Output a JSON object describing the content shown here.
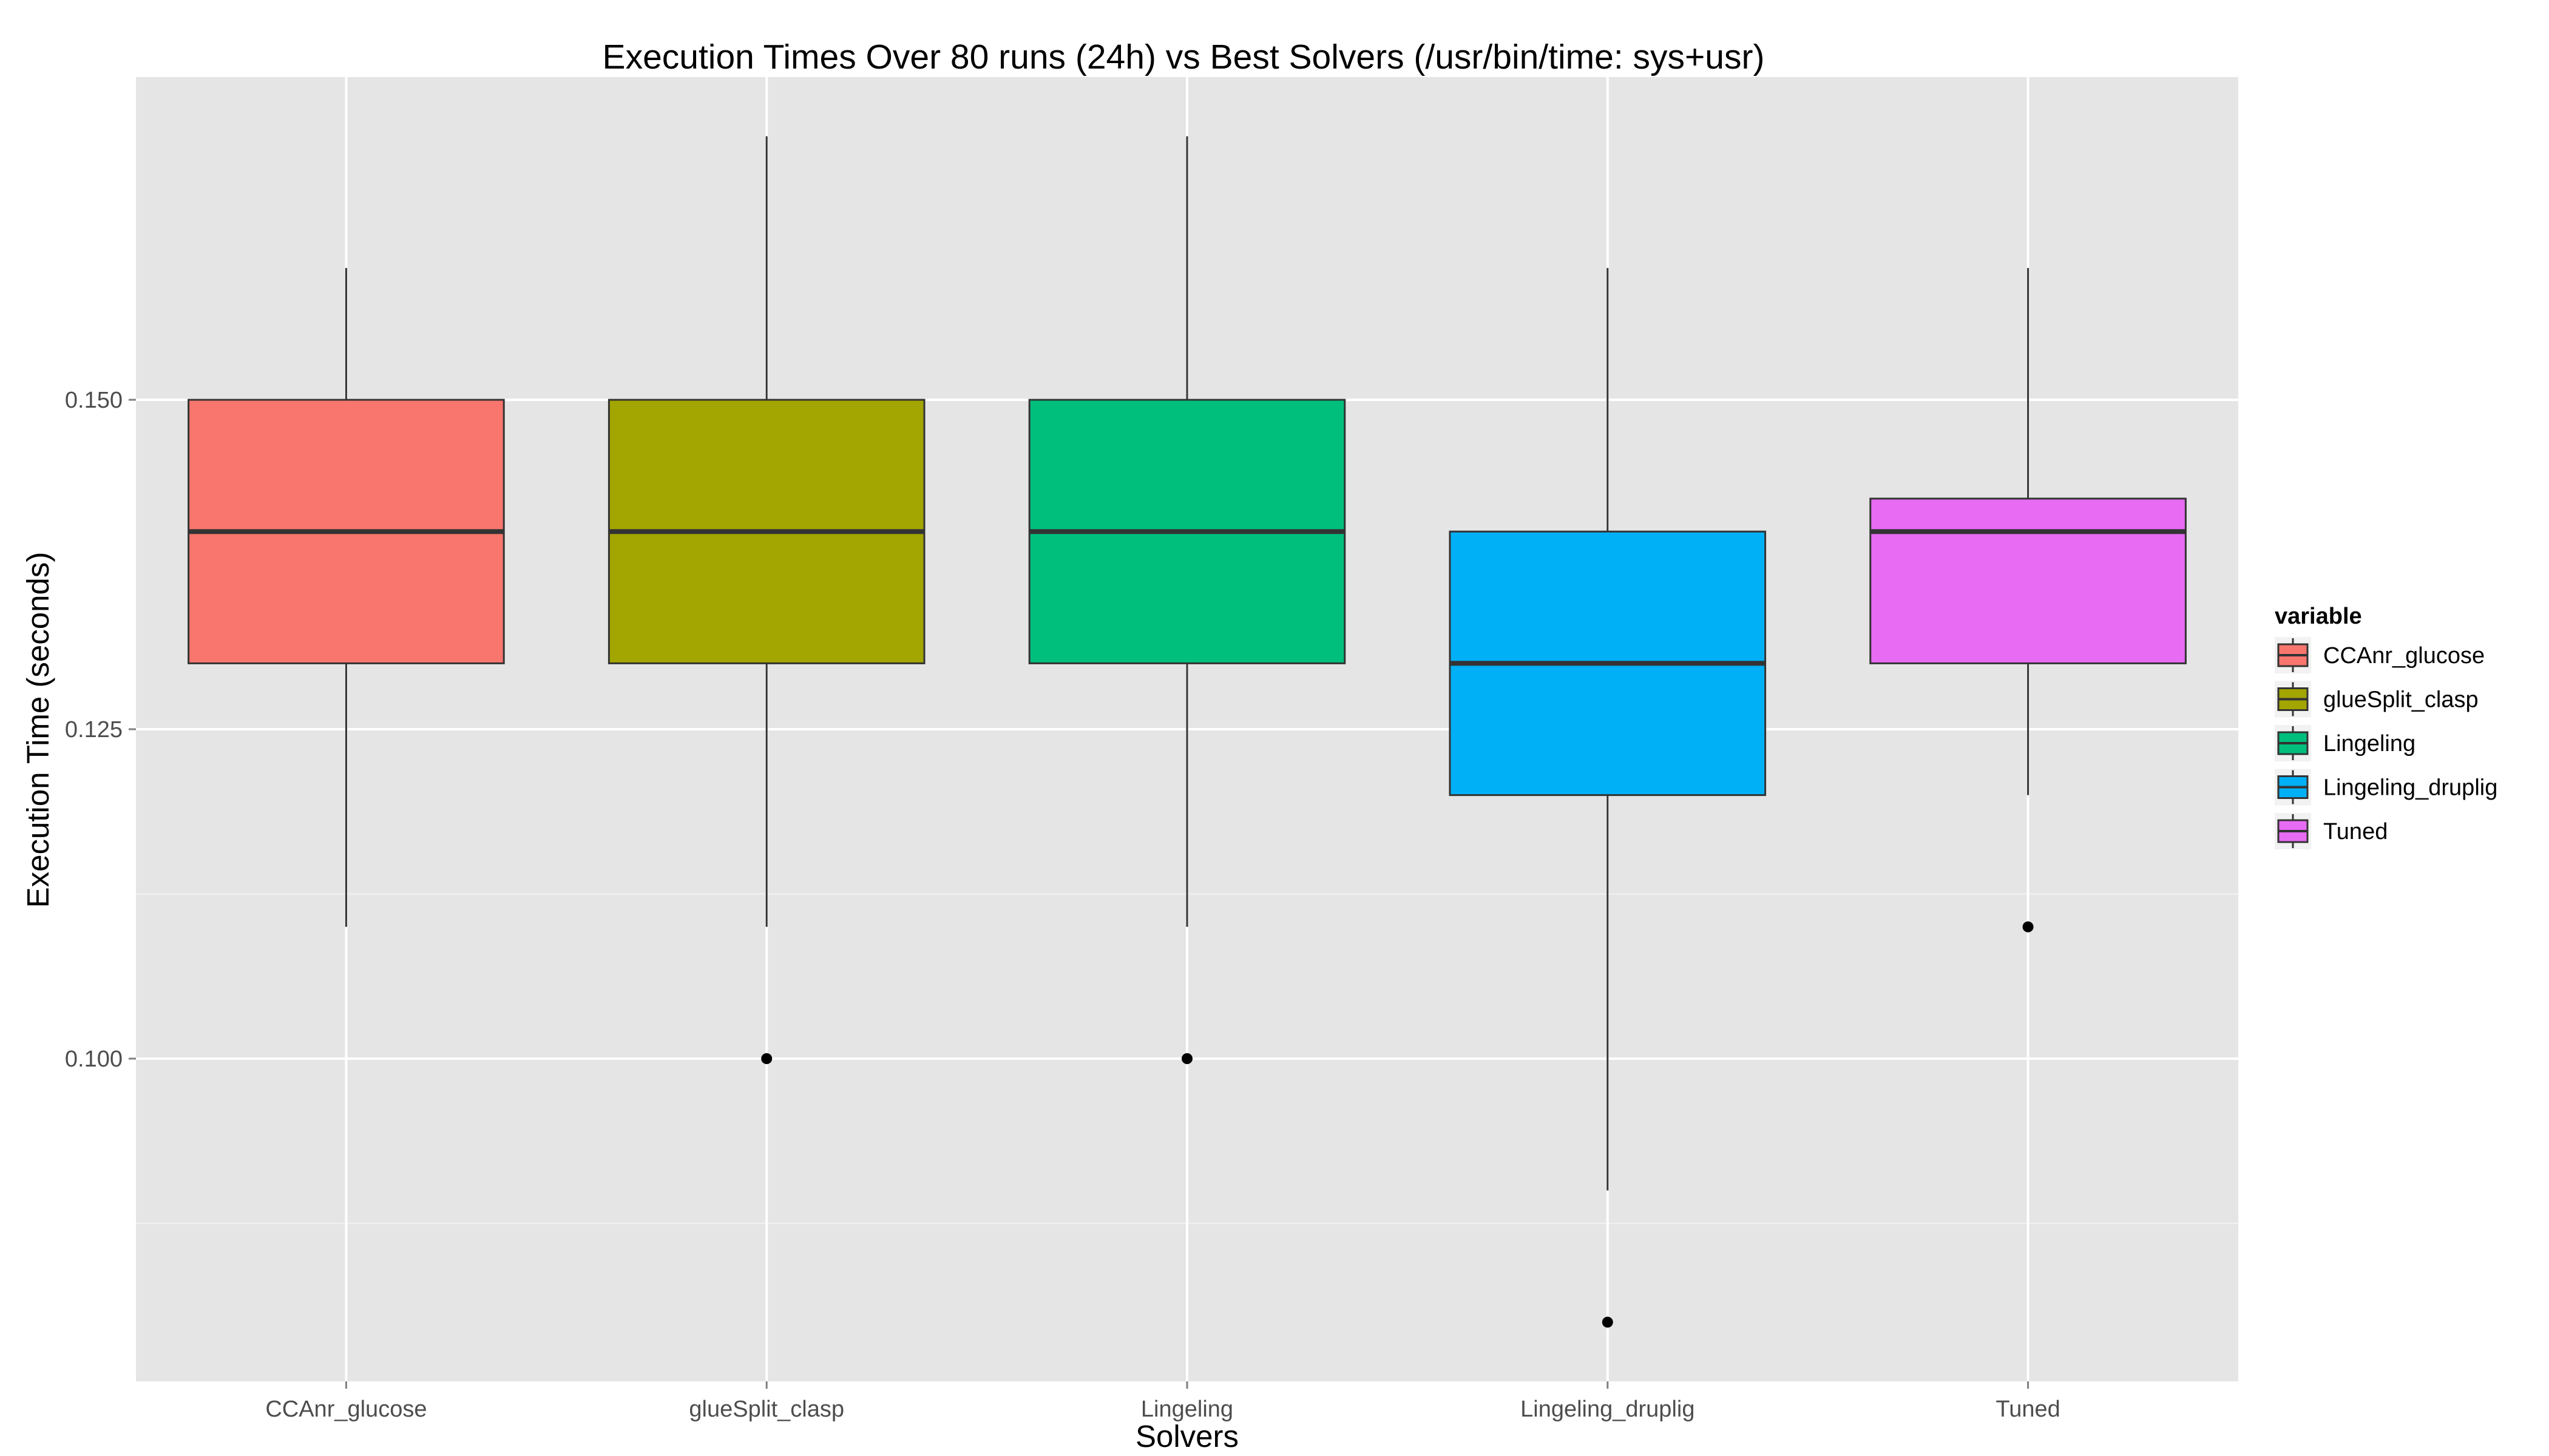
{
  "chart_data": {
    "type": "boxplot",
    "title": "Execution Times Over 80 runs (24h) vs Best Solvers (/usr/bin/time: sys+usr)",
    "xlabel": "Solvers",
    "ylabel": "Execution Time (seconds)",
    "ylim": [
      0.075,
      0.1744
    ],
    "yticks": [
      {
        "value": 0.1,
        "label": "0.100"
      },
      {
        "value": 0.125,
        "label": "0.125"
      },
      {
        "value": 0.15,
        "label": "0.150"
      }
    ],
    "grid": true,
    "panel_background": "#e5e5e5",
    "grid_color": "#ffffff",
    "legend": {
      "title": "variable",
      "position": "right"
    },
    "categories": [
      "CCAnr_glucose",
      "glueSplit_clasp",
      "Lingeling",
      "Lingeling_druplig",
      "Tuned"
    ],
    "series": [
      {
        "name": "CCAnr_glucose",
        "color": "#F8766D",
        "whisker_low": 0.11,
        "q1": 0.13,
        "median": 0.14,
        "q3": 0.15,
        "whisker_high": 0.16,
        "outliers": []
      },
      {
        "name": "glueSplit_clasp",
        "color": "#A3A500",
        "whisker_low": 0.11,
        "q1": 0.13,
        "median": 0.14,
        "q3": 0.15,
        "whisker_high": 0.17,
        "outliers": [
          0.1
        ]
      },
      {
        "name": "Lingeling",
        "color": "#00BF7D",
        "whisker_low": 0.11,
        "q1": 0.13,
        "median": 0.14,
        "q3": 0.15,
        "whisker_high": 0.17,
        "outliers": [
          0.1
        ]
      },
      {
        "name": "Lingeling_druplig",
        "color": "#00B0F6",
        "whisker_low": 0.09,
        "q1": 0.12,
        "median": 0.13,
        "q3": 0.14,
        "whisker_high": 0.16,
        "outliers": [
          0.08
        ]
      },
      {
        "name": "Tuned",
        "color": "#E76BF3",
        "whisker_low": 0.12,
        "q1": 0.13,
        "median": 0.14,
        "q3": 0.1425,
        "whisker_high": 0.16,
        "outliers": [
          0.11
        ]
      }
    ]
  }
}
